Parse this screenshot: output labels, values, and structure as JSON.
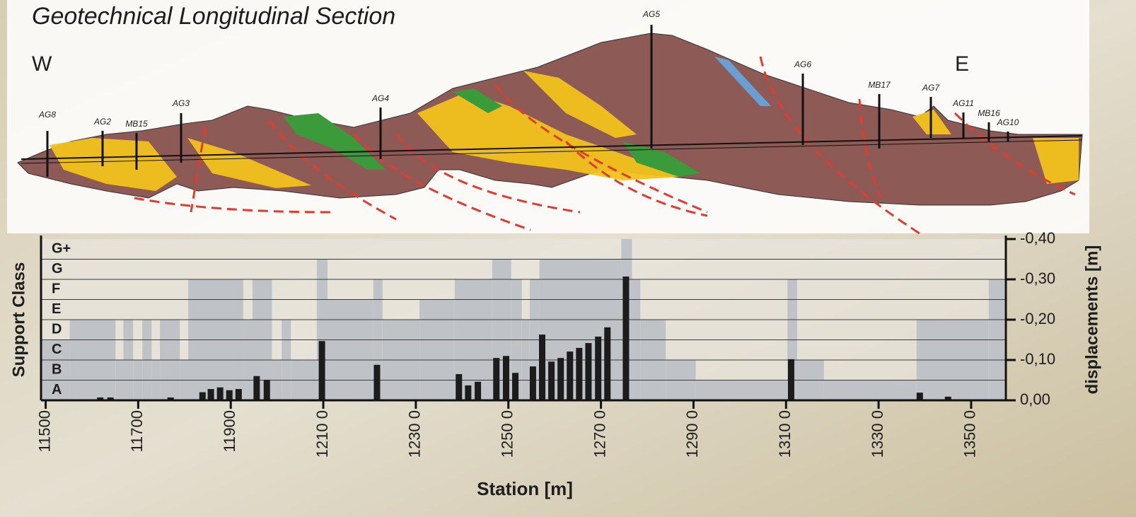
{
  "section": {
    "title": "Geotechnical Longitudinal Section",
    "west": "W",
    "east": "E",
    "boreholes": [
      "AG8",
      "AG2",
      "MB15",
      "AG3",
      "AG4",
      "AG5",
      "AG6",
      "MB17",
      "AG7",
      "AG11",
      "MB16",
      "AG10"
    ]
  },
  "chart_data": {
    "type": "bar",
    "x_label": "Station [m]",
    "y_label": "Support Class",
    "y2_label": "displacements [m]",
    "xlim": [
      11490,
      13575
    ],
    "xticks": [
      11500,
      11700,
      11900,
      {
        "value": 12100,
        "label": "1210 0"
      },
      {
        "value": 12300,
        "label": "1230 0"
      },
      {
        "value": 12500,
        "label": "1250 0"
      },
      {
        "value": 12700,
        "label": "1270 0"
      },
      {
        "value": 12900,
        "label": "1290 0"
      },
      {
        "value": 13100,
        "label": "1310 0"
      },
      {
        "value": 13300,
        "label": "1330 0"
      },
      {
        "value": 13500,
        "label": "1350 0"
      }
    ],
    "ylim": [
      0,
      8
    ],
    "yticks": [
      {
        "value": 0.5,
        "label": "A"
      },
      {
        "value": 1.5,
        "label": "B"
      },
      {
        "value": 2.5,
        "label": "C"
      },
      {
        "value": 3.5,
        "label": "D"
      },
      {
        "value": 4.5,
        "label": "E"
      },
      {
        "value": 5.5,
        "label": "F"
      },
      {
        "value": 6.5,
        "label": "G"
      },
      {
        "value": 7.5,
        "label": "G+"
      }
    ],
    "y2lim": [
      0,
      -0.4
    ],
    "y2ticks": [
      {
        "value": 0,
        "label": "0,00"
      },
      {
        "value": -0.1,
        "label": "-0,10"
      },
      {
        "value": -0.2,
        "label": "-0,20"
      },
      {
        "value": -0.3,
        "label": "-0,30"
      },
      {
        "value": -0.4,
        "label": "-0,40"
      }
    ],
    "grid": true,
    "support_class": {
      "type": "area",
      "color": "#bfc2c6",
      "bins": [
        11490,
        11552,
        11651,
        11668,
        11689,
        11709,
        11729,
        11747,
        11790,
        11808,
        11927,
        11947,
        11989,
        12010,
        12030,
        12086,
        12109,
        12208,
        12228,
        12308,
        12384,
        12465,
        12506,
        12529,
        12546,
        12567,
        12744,
        12767,
        12785,
        12840,
        12905,
        13103,
        13124,
        13182,
        13382,
        13538,
        13572
      ],
      "values": [
        3,
        4,
        2,
        4,
        2,
        4,
        2,
        4,
        2,
        6,
        4,
        6,
        2,
        4,
        2,
        7,
        5,
        6,
        4,
        5,
        6,
        7,
        6,
        4,
        6,
        7,
        8,
        6,
        4,
        2,
        1,
        6,
        2,
        1,
        4,
        6
      ]
    },
    "displacements": {
      "type": "bar",
      "axis": "y2",
      "color": "#1c1c1c",
      "x": [
        11618,
        11640,
        11770,
        11839,
        11857,
        11877,
        11897,
        11917,
        11956,
        11978,
        12097,
        12216,
        12393,
        12413,
        12434,
        12474,
        12495,
        12515,
        12553,
        12573,
        12593,
        12613,
        12633,
        12653,
        12673,
        12694,
        12714,
        12754,
        13111,
        13389,
        13450
      ],
      "values": [
        -0.007,
        -0.007,
        -0.007,
        -0.02,
        -0.028,
        -0.032,
        -0.025,
        -0.028,
        -0.06,
        -0.051,
        -0.147,
        -0.088,
        -0.065,
        -0.037,
        -0.046,
        -0.105,
        -0.11,
        -0.068,
        -0.084,
        -0.163,
        -0.096,
        -0.105,
        -0.121,
        -0.13,
        -0.142,
        -0.158,
        -0.181,
        -0.307,
        -0.102,
        -0.019,
        -0.009
      ]
    }
  }
}
